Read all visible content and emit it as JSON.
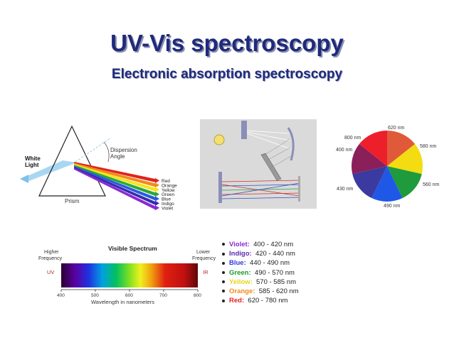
{
  "slide": {
    "title": "UV-Vis spectroscopy",
    "subtitle": "Electronic absorption spectroscopy"
  },
  "prism": {
    "input_label_1": "White",
    "input_label_2": "Light",
    "dispersion_label_1": "Dispersion",
    "dispersion_label_2": "Angle",
    "prism_label": "Prism",
    "colors": [
      {
        "name": "Red",
        "hex": "#e0241c"
      },
      {
        "name": "Orange",
        "hex": "#f28a1a"
      },
      {
        "name": "Yellow",
        "hex": "#f4e51a"
      },
      {
        "name": "Green",
        "hex": "#2aa83a"
      },
      {
        "name": "Blue",
        "hex": "#2a5ae0"
      },
      {
        "name": "Indigo",
        "hex": "#3b2ab0"
      },
      {
        "name": "Violet",
        "hex": "#8a2ad0"
      }
    ]
  },
  "color_wheel": {
    "labels": [
      "620 nm",
      "580 nm",
      "560 nm",
      "490 nm",
      "430 nm",
      "400 nm",
      "800 nm"
    ],
    "segments": [
      "#e05a3a",
      "#f3dc12",
      "#1f9a3c",
      "#1f58e6",
      "#3a3aa0",
      "#8a1f5a",
      "#ed1f2a"
    ]
  },
  "spectrum": {
    "title": "Visible Spectrum",
    "left_label_1": "Higher",
    "left_label_2": "Frequency",
    "right_label_1": "Lower",
    "right_label_2": "Frequency",
    "uv_label": "UV",
    "ir_label": "IR",
    "ticks": [
      "400",
      "500",
      "600",
      "700",
      "800"
    ],
    "axis_label": "Wavelength in nanometers"
  },
  "legend": [
    {
      "name": "Violet:",
      "range": "400 - 420 nm",
      "color": "#8a2ad0"
    },
    {
      "name": "Indigo:",
      "range": "420 - 440 nm",
      "color": "#5a2ab0"
    },
    {
      "name": "Blue:",
      "range": "440 - 490 nm",
      "color": "#2a3ae0"
    },
    {
      "name": "Green:",
      "range": "490 - 570 nm",
      "color": "#1a9a2a"
    },
    {
      "name": "Yellow:",
      "range": "570 - 585 nm",
      "color": "#e6d41a"
    },
    {
      "name": "Orange:",
      "range": "585 - 620 nm",
      "color": "#f28a1a"
    },
    {
      "name": "Red:",
      "range": "620 - 780 nm",
      "color": "#e0241c"
    }
  ]
}
